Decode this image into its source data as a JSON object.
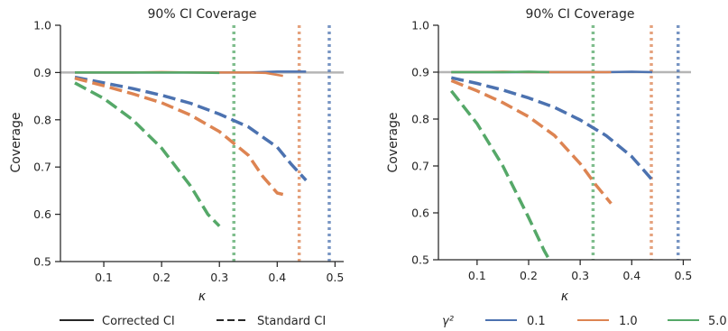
{
  "colors": {
    "blue": "#4C72B0",
    "orange": "#DD8452",
    "green": "#55A868",
    "ref_line": "#b5b5b5",
    "axes": "#262626"
  },
  "panels": [
    {
      "title": "90% CI Coverage",
      "xlabel": "κ",
      "ylabel": "Coverage"
    },
    {
      "title": "90% CI Coverage",
      "xlabel": "κ",
      "ylabel": "Coverage"
    }
  ],
  "legend_style": {
    "solid_label": "Corrected CI",
    "dashed_label": "Standard CI"
  },
  "legend_gamma": {
    "title": "γ²",
    "entries": [
      {
        "label": "0.1",
        "color": "#4C72B0"
      },
      {
        "label": "1.0",
        "color": "#DD8452"
      },
      {
        "label": "5.0",
        "color": "#55A868"
      }
    ]
  },
  "chart_data": [
    {
      "type": "line",
      "title": "90% CI Coverage",
      "xlabel": "κ",
      "ylabel": "Coverage",
      "xlim": [
        0.025,
        0.515
      ],
      "ylim": [
        0.5,
        1.0
      ],
      "xticks": [
        "0.1",
        "0.2",
        "0.3",
        "0.4",
        "0.5"
      ],
      "yticks": [
        "0.5",
        "0.6",
        "0.7",
        "0.8",
        "0.9",
        "1.0"
      ],
      "reference_line": 0.9,
      "vlines": [
        {
          "x": 0.325,
          "color": "#55A868"
        },
        {
          "x": 0.438,
          "color": "#DD8452"
        },
        {
          "x": 0.49,
          "color": "#4C72B0"
        }
      ],
      "series": [
        {
          "color": "#4C72B0",
          "style": "solid",
          "x": [
            0.05,
            0.1,
            0.15,
            0.2,
            0.25,
            0.3,
            0.35,
            0.4,
            0.45
          ],
          "y": [
            0.9,
            0.9,
            0.9,
            0.9,
            0.9,
            0.9,
            0.9,
            0.902,
            0.902
          ]
        },
        {
          "color": "#DD8452",
          "style": "solid",
          "x": [
            0.05,
            0.1,
            0.15,
            0.2,
            0.25,
            0.3,
            0.35,
            0.38,
            0.41
          ],
          "y": [
            0.9,
            0.9,
            0.9,
            0.901,
            0.9,
            0.9,
            0.9,
            0.899,
            0.893
          ]
        },
        {
          "color": "#55A868",
          "style": "solid",
          "x": [
            0.05,
            0.1,
            0.15,
            0.2,
            0.25,
            0.3
          ],
          "y": [
            0.9,
            0.9,
            0.9,
            0.9,
            0.9,
            0.899
          ]
        },
        {
          "color": "#4C72B0",
          "style": "dashed",
          "x": [
            0.05,
            0.1,
            0.15,
            0.2,
            0.25,
            0.3,
            0.35,
            0.4,
            0.425,
            0.45
          ],
          "y": [
            0.89,
            0.878,
            0.866,
            0.852,
            0.835,
            0.812,
            0.785,
            0.742,
            0.705,
            0.672
          ]
        },
        {
          "color": "#DD8452",
          "style": "dashed",
          "x": [
            0.05,
            0.1,
            0.15,
            0.2,
            0.25,
            0.3,
            0.35,
            0.375,
            0.4,
            0.41
          ],
          "y": [
            0.888,
            0.872,
            0.855,
            0.836,
            0.81,
            0.775,
            0.725,
            0.68,
            0.645,
            0.642
          ]
        },
        {
          "color": "#55A868",
          "style": "dashed",
          "x": [
            0.05,
            0.1,
            0.15,
            0.2,
            0.25,
            0.28,
            0.3
          ],
          "y": [
            0.878,
            0.845,
            0.8,
            0.74,
            0.66,
            0.6,
            0.575
          ]
        }
      ]
    },
    {
      "type": "line",
      "title": "90% CI Coverage",
      "xlabel": "κ",
      "ylabel": "Coverage",
      "xlim": [
        0.025,
        0.515
      ],
      "ylim": [
        0.5,
        1.0
      ],
      "xticks": [
        "0.1",
        "0.2",
        "0.3",
        "0.4",
        "0.5"
      ],
      "yticks": [
        "0.5",
        "0.6",
        "0.7",
        "0.8",
        "0.9",
        "1.0"
      ],
      "reference_line": 0.9,
      "vlines": [
        {
          "x": 0.325,
          "color": "#55A868"
        },
        {
          "x": 0.438,
          "color": "#DD8452"
        },
        {
          "x": 0.49,
          "color": "#4C72B0"
        }
      ],
      "series": [
        {
          "name": "0.1",
          "color": "#4C72B0",
          "style": "solid",
          "x": [
            0.05,
            0.1,
            0.15,
            0.2,
            0.25,
            0.3,
            0.35,
            0.4,
            0.44
          ],
          "y": [
            0.9,
            0.9,
            0.9,
            0.9,
            0.9,
            0.9,
            0.9,
            0.901,
            0.9
          ]
        },
        {
          "name": "1.0",
          "color": "#DD8452",
          "style": "solid",
          "x": [
            0.05,
            0.1,
            0.15,
            0.2,
            0.25,
            0.3,
            0.36
          ],
          "y": [
            0.9,
            0.9,
            0.901,
            0.9,
            0.9,
            0.9,
            0.9
          ]
        },
        {
          "name": "5.0",
          "color": "#55A868",
          "style": "solid",
          "x": [
            0.05,
            0.1,
            0.15,
            0.2,
            0.24
          ],
          "y": [
            0.9,
            0.9,
            0.9,
            0.901,
            0.9
          ]
        },
        {
          "color": "#4C72B0",
          "style": "dashed",
          "x": [
            0.05,
            0.1,
            0.15,
            0.2,
            0.25,
            0.3,
            0.35,
            0.4,
            0.44
          ],
          "y": [
            0.888,
            0.876,
            0.862,
            0.845,
            0.825,
            0.798,
            0.765,
            0.72,
            0.67
          ]
        },
        {
          "color": "#DD8452",
          "style": "dashed",
          "x": [
            0.05,
            0.1,
            0.15,
            0.2,
            0.25,
            0.3,
            0.33,
            0.36
          ],
          "y": [
            0.882,
            0.86,
            0.835,
            0.805,
            0.765,
            0.705,
            0.66,
            0.62
          ]
        },
        {
          "color": "#55A868",
          "style": "dashed",
          "x": [
            0.05,
            0.1,
            0.15,
            0.2,
            0.23,
            0.24
          ],
          "y": [
            0.86,
            0.79,
            0.7,
            0.59,
            0.52,
            0.5
          ]
        }
      ]
    }
  ]
}
